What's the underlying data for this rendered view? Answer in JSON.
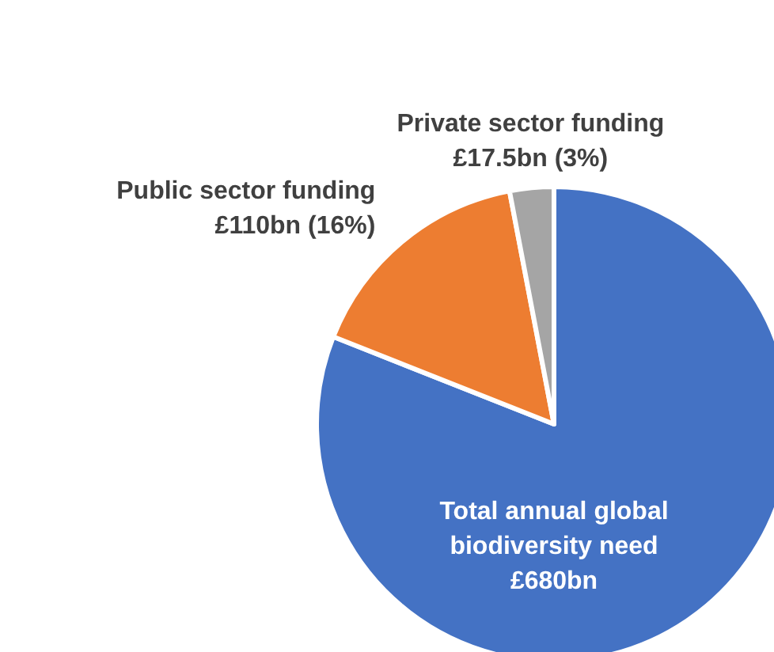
{
  "chart_data": {
    "type": "pie",
    "categories": [
      "Total annual global biodiversity need",
      "Public sector funding",
      "Private sector funding"
    ],
    "values": [
      81,
      16,
      3
    ],
    "colors": [
      "#4472c4",
      "#ed7d31",
      "#a5a5a5"
    ],
    "value_labels": [
      null,
      "£110bn (16%)",
      "£17.5bn (3%)"
    ],
    "annotations": [
      "£680bn"
    ]
  }
}
